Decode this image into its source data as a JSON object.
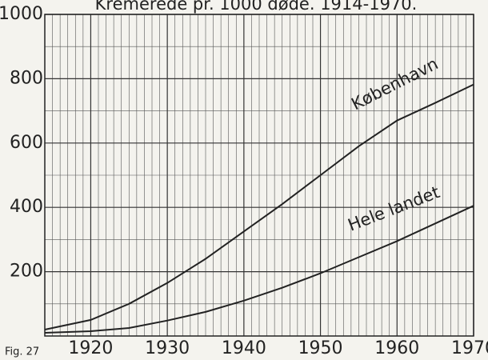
{
  "chart_data": {
    "type": "line",
    "title": "Kremerede pr. 1000 døde. 1914-1970.",
    "caption": "Fig. 27",
    "x": [
      1914,
      1920,
      1925,
      1930,
      1935,
      1940,
      1945,
      1950,
      1955,
      1960,
      1965,
      1970
    ],
    "series": [
      {
        "name": "København",
        "color": "#222222",
        "values": [
          20,
          50,
          100,
          165,
          240,
          325,
          410,
          500,
          590,
          670,
          725,
          782
        ]
      },
      {
        "name": "Hele landet",
        "color": "#222222",
        "values": [
          10,
          15,
          25,
          48,
          75,
          110,
          150,
          195,
          245,
          295,
          350,
          405
        ]
      }
    ],
    "xlim": [
      1914,
      1970
    ],
    "ylim": [
      0,
      1000
    ],
    "xticks": [
      1920,
      1930,
      1940,
      1950,
      1960,
      1970
    ],
    "yticks": [
      200,
      400,
      600,
      800,
      1000
    ],
    "x_minor_ticks": [
      1915,
      1916,
      1917,
      1918,
      1919,
      1921,
      1922,
      1923,
      1924,
      1925,
      1926,
      1927,
      1928,
      1929,
      1931,
      1932,
      1933,
      1934,
      1935,
      1936,
      1937,
      1938,
      1939,
      1941,
      1942,
      1943,
      1944,
      1945,
      1946,
      1947,
      1948,
      1949,
      1951,
      1952,
      1953,
      1954,
      1955,
      1956,
      1957,
      1958,
      1959,
      1961,
      1962,
      1963,
      1964,
      1965,
      1966,
      1967,
      1968,
      1969
    ],
    "y_minor_ticks": [
      100,
      300,
      500,
      700,
      900
    ],
    "grid": true
  }
}
